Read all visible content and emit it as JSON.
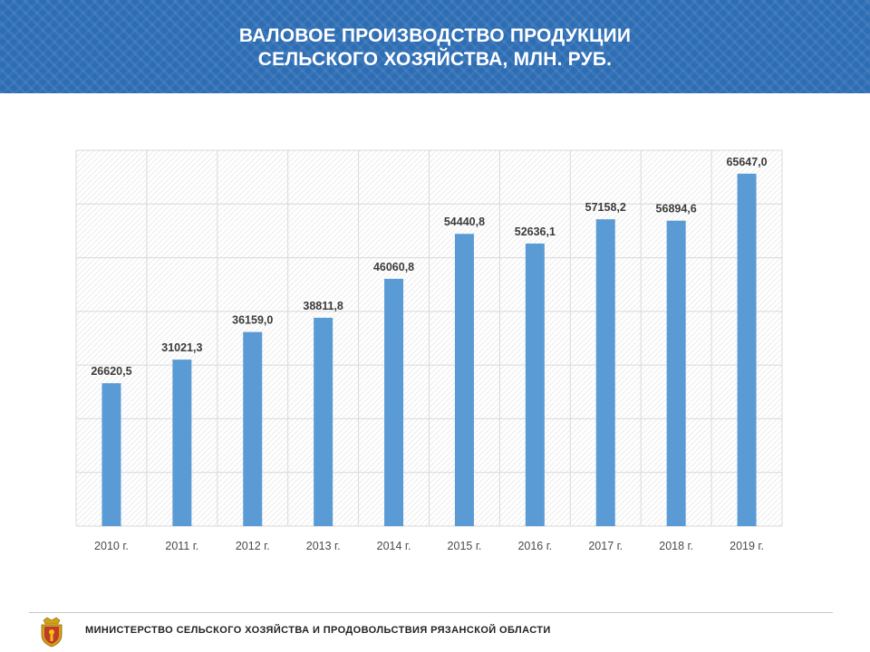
{
  "header": {
    "title_line1": "ВАЛОВОЕ ПРОИЗВОДСТВО ПРОДУКЦИИ",
    "title_line2": "СЕЛЬСКОГО ХОЗЯЙСТВА, МЛН. РУБ."
  },
  "chart_data": {
    "type": "bar",
    "title": "ВАЛОВОЕ ПРОИЗВОДСТВО ПРОДУКЦИИ СЕЛЬСКОГО ХОЗЯЙСТВА, МЛН. РУБ.",
    "categories": [
      "2010 г.",
      "2011 г.",
      "2012 г.",
      "2013 г.",
      "2014 г.",
      "2015 г.",
      "2016 г.",
      "2017 г.",
      "2018 г.",
      "2019 г."
    ],
    "values": [
      26620.5,
      31021.3,
      36159.0,
      38811.8,
      46060.8,
      54440.8,
      52636.1,
      57158.2,
      56894.6,
      65647.0
    ],
    "value_labels": [
      "26620,5",
      "31021,3",
      "36159,0",
      "38811,8",
      "46060,8",
      "54440,8",
      "52636,1",
      "57158,2",
      "56894,6",
      "65647,0"
    ],
    "xlabel": "",
    "ylabel": "",
    "ylim": [
      0,
      70000
    ],
    "grid": true,
    "legend": "none",
    "bar_color": "#5b9bd5"
  },
  "footer": {
    "text": "МИНИСТЕРСТВО СЕЛЬСКОГО ХОЗЯЙСТВА И ПРОДОВОЛЬСТВИЯ РЯЗАНСКОЙ ОБЛАСТИ",
    "emblem_icon": "coat-of-arms-icon"
  },
  "colors": {
    "header_bg": "#2d6db4",
    "bar": "#5b9bd5",
    "grid": "#d9d9d9"
  }
}
